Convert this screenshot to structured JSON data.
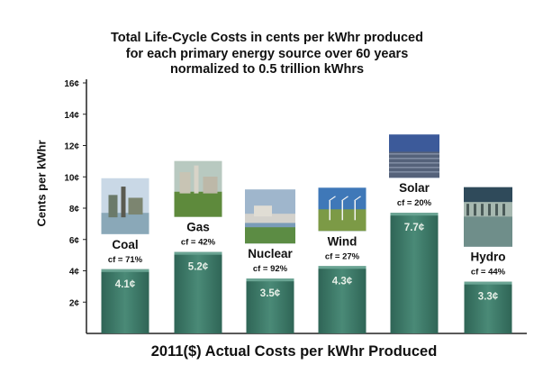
{
  "chart_data": {
    "type": "bar",
    "title": [
      "Total Life-Cycle Costs in cents per kWhr produced",
      "for each primary energy source over 60 years",
      "normalized to 0.5 trillion kWhrs"
    ],
    "xlabel": "2011($) Actual Costs per kWhr Produced",
    "ylabel": "Cents per kWhr",
    "ylim": [
      0,
      16
    ],
    "yticks": [
      "2¢",
      "4¢",
      "6¢",
      "8¢",
      "10¢",
      "12¢",
      "14¢",
      "16¢"
    ],
    "ytick_values": [
      2,
      4,
      6,
      8,
      10,
      12,
      14,
      16
    ],
    "categories": [
      "Coal",
      "Gas",
      "Nuclear",
      "Wind",
      "Solar",
      "Hydro"
    ],
    "capacity_factors": [
      "cf = 71%",
      "cf = 42%",
      "cf = 92%",
      "cf = 27%",
      "cf = 20%",
      "cf = 44%"
    ],
    "values": [
      4.1,
      5.2,
      3.5,
      4.3,
      7.7,
      3.3
    ],
    "value_labels": [
      "4.1¢",
      "5.2¢",
      "3.5¢",
      "4.3¢",
      "7.7¢",
      "3.3¢"
    ],
    "photos": [
      "coal-plant-photo",
      "gas-plant-photo",
      "nuclear-plant-photo",
      "wind-farm-photo",
      "solar-farm-photo",
      "hydro-dam-photo"
    ],
    "colors": {
      "bar": "#3f7a6a",
      "bar_dark": "#2a5a4c",
      "label": "#e8f0e8"
    }
  }
}
